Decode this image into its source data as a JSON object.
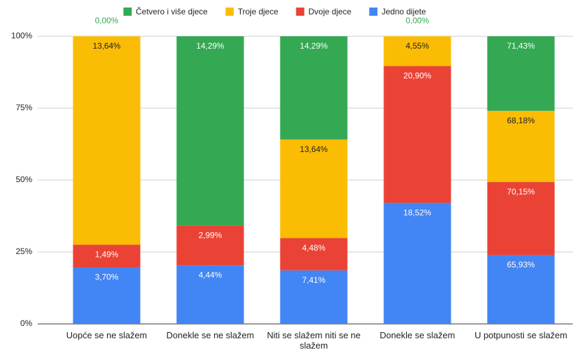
{
  "chart_data": {
    "type": "bar",
    "stack": "percent",
    "categories": [
      "Uopće se ne slažem",
      "Donekle se ne slažem",
      "Niti se slažem niti se ne slažem",
      "Donekle se slažem",
      "U potpunosti se slažem"
    ],
    "series": [
      {
        "name": "Jedno dijete",
        "color": "#4285f4",
        "values": [
          3.7,
          4.44,
          7.41,
          18.52,
          65.93
        ],
        "value_labels": [
          "3,70%",
          "4,44%",
          "7,41%",
          "18,52%",
          "65,93%"
        ]
      },
      {
        "name": "Dvoje djece",
        "color": "#ea4335",
        "values": [
          1.49,
          2.99,
          4.48,
          20.9,
          70.15
        ],
        "value_labels": [
          "1,49%",
          "2,99%",
          "4,48%",
          "20,90%",
          "70,15%"
        ]
      },
      {
        "name": "Troje djece",
        "color": "#fbbc04",
        "values": [
          13.64,
          0.0,
          13.64,
          4.55,
          68.18
        ],
        "value_labels": [
          "13,64%",
          "0,00%",
          "13,64%",
          "4,55%",
          "68,18%"
        ]
      },
      {
        "name": "Četvero i više djece",
        "color": "#34a853",
        "values": [
          0.0,
          14.29,
          14.29,
          0.0,
          71.43
        ],
        "value_labels": [
          "0,00%",
          "14,29%",
          "14,29%",
          "0,00%",
          "71,43%"
        ]
      }
    ],
    "ylim": [
      0,
      100
    ],
    "yticks": [
      {
        "value": 0,
        "label": "0%"
      },
      {
        "value": 25,
        "label": "25%"
      },
      {
        "value": 50,
        "label": "50%"
      },
      {
        "value": 75,
        "label": "75%"
      },
      {
        "value": 100,
        "label": "100%"
      }
    ],
    "grid": true,
    "legend": "top"
  }
}
